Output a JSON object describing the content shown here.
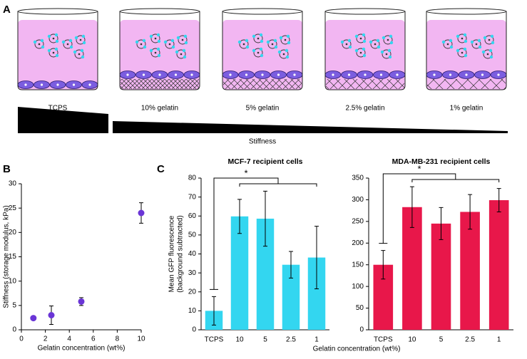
{
  "diagram": {
    "panel_label": "A",
    "wells": [
      "TCPS",
      "10% gelatin",
      "5% gelatin",
      "2.5% gelatin",
      "1% gelatin"
    ],
    "axis_label": "Stiffness"
  },
  "chart_data": [
    {
      "type": "scatter",
      "panel_label": "B",
      "xlabel": "Gelatin concentration (wt%)",
      "ylabel": "Stiffness (storage modulus, kPa)",
      "x": [
        1,
        2.5,
        5,
        10
      ],
      "values": [
        2.4,
        3.0,
        5.8,
        24.0
      ],
      "errors": [
        0.3,
        1.9,
        0.8,
        2.1
      ],
      "color": "#6a35d6",
      "xlim": [
        0,
        10
      ],
      "xticks": [
        0,
        2,
        4,
        6,
        8,
        10
      ],
      "ylim": [
        0,
        30
      ],
      "yticks": [
        0,
        5,
        10,
        15,
        20,
        25,
        30
      ]
    },
    {
      "type": "bar",
      "panel_label": "C",
      "title": "MCF-7 recipient cells",
      "annotation": "*",
      "xlabel": "Gelatin concentration (wt%)",
      "ylabel": [
        "Mean GFP fluorescence",
        "(background subtracted)"
      ],
      "categories": [
        "TCPS",
        "10",
        "5",
        "2.5",
        "1"
      ],
      "values": [
        10,
        59.8,
        58.6,
        34.3,
        38.1
      ],
      "errors": [
        7.5,
        9,
        14.5,
        7,
        16.5
      ],
      "color": "#33d6f0",
      "ylim": [
        0,
        80
      ],
      "yticks": [
        0,
        10,
        20,
        30,
        40,
        50,
        60,
        70,
        80
      ]
    },
    {
      "type": "bar",
      "title": "MDA-MB-231 recipient cells",
      "annotation": "*",
      "categories": [
        "TCPS",
        "10",
        "5",
        "2.5",
        "1"
      ],
      "values": [
        150,
        283,
        245,
        272,
        299
      ],
      "errors": [
        33,
        47,
        37,
        40,
        27
      ],
      "color": "#e8174a",
      "ylim": [
        0,
        350
      ],
      "yticks": [
        0,
        50,
        100,
        150,
        200,
        250,
        300,
        350
      ]
    }
  ]
}
